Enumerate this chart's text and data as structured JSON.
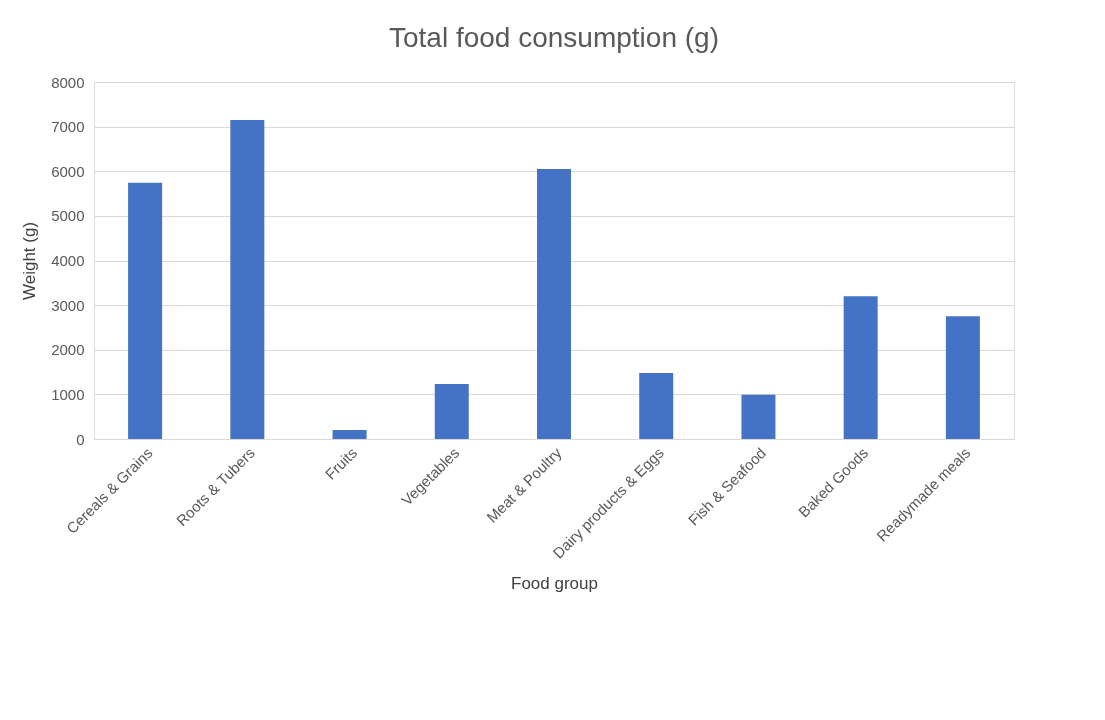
{
  "chart_data": {
    "type": "bar",
    "title": "Total food consumption  (g)",
    "xlabel": "Food group",
    "ylabel": "Weight (g)",
    "categories": [
      "Cereals & Grains",
      "Roots & Tubers",
      "Fruits",
      "Vegetables",
      "Meat & Poultry",
      "Dairy products & Eggs",
      "Fish & Seafood",
      "Baked Goods",
      "Readymade meals"
    ],
    "values": [
      5740,
      7150,
      200,
      1230,
      6050,
      1480,
      990,
      3200,
      2750
    ],
    "color": "#4472c4",
    "ylim": [
      0,
      8000
    ],
    "yticks": [
      0,
      1000,
      2000,
      3000,
      4000,
      5000,
      6000,
      7000,
      8000
    ],
    "grid": "y"
  }
}
